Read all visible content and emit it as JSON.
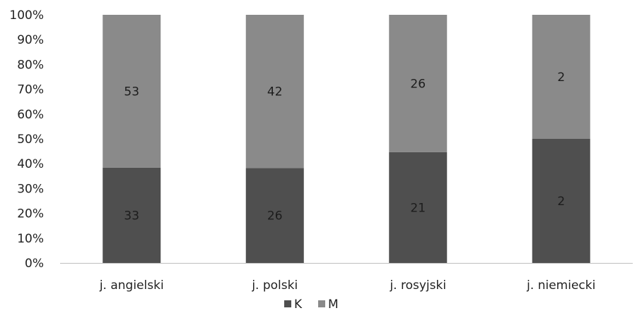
{
  "chart_data": {
    "type": "bar",
    "stacked": true,
    "percent_stacked": true,
    "categories": [
      "j. angielski",
      "j. polski",
      "j. rosyjski",
      "j. niemiecki"
    ],
    "series": [
      {
        "name": "K",
        "values": [
          33,
          26,
          21,
          2
        ],
        "color": "#4f4f4f",
        "label_color": "#1c1c1c"
      },
      {
        "name": "M",
        "values": [
          53,
          42,
          26,
          2
        ],
        "color": "#8a8a8a",
        "label_color": "#1c1c1c"
      }
    ],
    "y_ticks": [
      "0%",
      "10%",
      "20%",
      "30%",
      "40%",
      "50%",
      "60%",
      "70%",
      "80%",
      "90%",
      "100%"
    ],
    "ylim": [
      0,
      100
    ],
    "grid": false,
    "legend_position": "bottom-center"
  }
}
